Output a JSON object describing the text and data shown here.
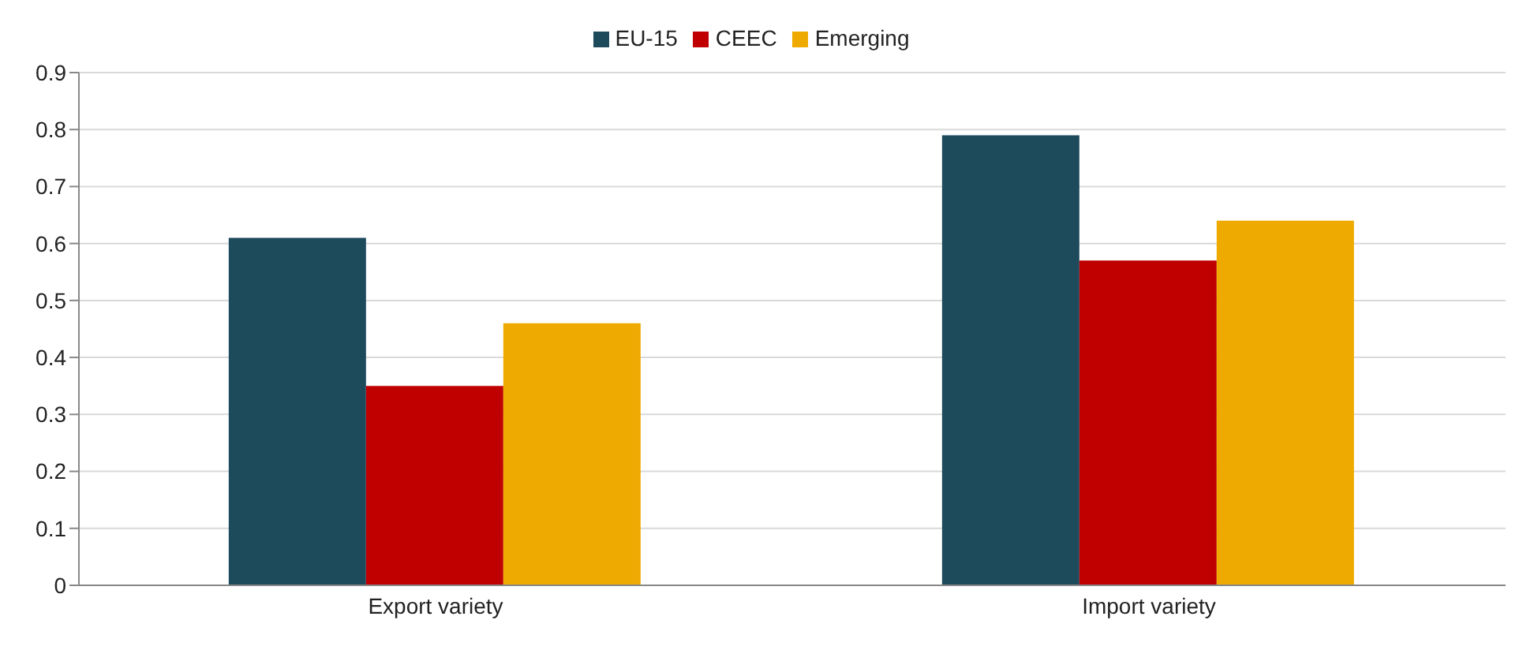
{
  "chart_data": {
    "type": "bar",
    "categories": [
      "Export variety",
      "Import variety"
    ],
    "series": [
      {
        "name": "EU-15",
        "color": "#1e4b5c",
        "values": [
          0.61,
          0.79
        ]
      },
      {
        "name": "CEEC",
        "color": "#c00000",
        "values": [
          0.35,
          0.57
        ]
      },
      {
        "name": "Emerging",
        "color": "#eeaa00",
        "values": [
          0.46,
          0.64
        ]
      }
    ],
    "ylim": [
      0,
      0.9
    ],
    "yticks": [
      0,
      0.1,
      0.2,
      0.3,
      0.4,
      0.5,
      0.6,
      0.7,
      0.8,
      0.9
    ],
    "grid": "y",
    "legend": "top"
  }
}
